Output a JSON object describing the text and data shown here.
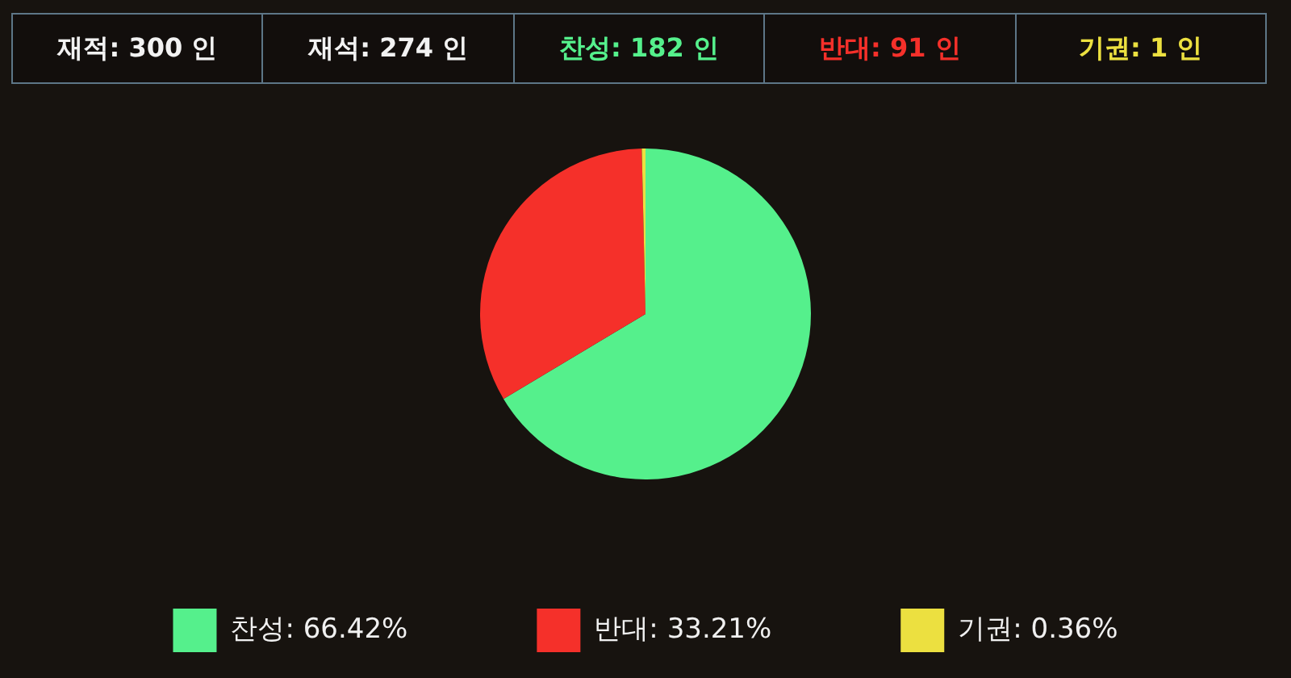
{
  "chart_data": {
    "type": "pie",
    "annotations": [
      "재적: 300 인",
      "재석: 274 인",
      "찬성: 182 인",
      "반대: 91 인",
      "기권: 1 인"
    ],
    "categories": [
      "찬성",
      "반대",
      "기권"
    ],
    "values": [
      66.42,
      33.21,
      0.36
    ],
    "value_labels": [
      "66.42%",
      "33.21%",
      "0.36%"
    ],
    "colors": [
      "#55f08c",
      "#f5302a",
      "#ece040"
    ],
    "legend": "bottom"
  }
}
